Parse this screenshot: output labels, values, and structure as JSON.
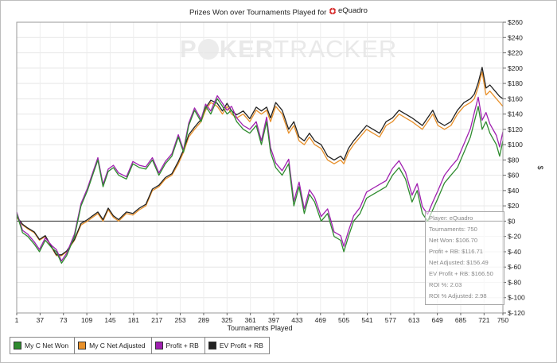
{
  "chart_data": {
    "type": "line",
    "title_prefix": "Prizes Won over Tournaments Played for",
    "player": "eQuadro",
    "watermark": "POKERTRACKER",
    "xlabel": "Tournaments Played",
    "ylabel": "$",
    "xlim": [
      1,
      750
    ],
    "ylim": [
      -120,
      260
    ],
    "x_ticks": [
      "1",
      "37",
      "73",
      "109",
      "145",
      "181",
      "217",
      "253",
      "289",
      "325",
      "361",
      "397",
      "433",
      "469",
      "505",
      "541",
      "577",
      "613",
      "649",
      "685",
      "721",
      "750"
    ],
    "y_ticks": [
      "$260",
      "$240",
      "$220",
      "$200",
      "$180",
      "$160",
      "$140",
      "$120",
      "$100",
      "$80",
      "$60",
      "$40",
      "$20",
      "$0",
      "$-20",
      "$-40",
      "$-60",
      "$-80",
      "$-100",
      "$-120"
    ],
    "grid": true,
    "zero_line": true,
    "legend_position": "bottom-left",
    "series": [
      {
        "name": "My C Net Won",
        "color": "#2e8b2e",
        "x": [
          1,
          10,
          18,
          28,
          36,
          45,
          55,
          62,
          70,
          78,
          90,
          100,
          110,
          118,
          126,
          134,
          142,
          150,
          158,
          170,
          180,
          190,
          200,
          210,
          220,
          230,
          240,
          250,
          258,
          266,
          275,
          285,
          292,
          300,
          310,
          318,
          325,
          332,
          340,
          350,
          360,
          370,
          378,
          386,
          392,
          400,
          410,
          420,
          428,
          436,
          444,
          452,
          460,
          470,
          480,
          490,
          500,
          505,
          512,
          520,
          530,
          540,
          550,
          560,
          570,
          580,
          590,
          600,
          610,
          618,
          626,
          634,
          642,
          650,
          660,
          670,
          680,
          690,
          700,
          706,
          712,
          718,
          724,
          730,
          740,
          745,
          750
        ],
        "values": [
          10,
          -15,
          -20,
          -30,
          -40,
          -25,
          -35,
          -40,
          -55,
          -45,
          -20,
          20,
          40,
          60,
          80,
          45,
          65,
          70,
          60,
          55,
          75,
          70,
          68,
          80,
          60,
          75,
          85,
          110,
          90,
          125,
          145,
          130,
          150,
          140,
          160,
          150,
          140,
          145,
          130,
          120,
          115,
          125,
          100,
          130,
          90,
          70,
          60,
          75,
          20,
          45,
          10,
          35,
          25,
          0,
          10,
          -20,
          -25,
          -40,
          -20,
          0,
          10,
          30,
          35,
          40,
          45,
          60,
          70,
          55,
          25,
          40,
          10,
          0,
          15,
          30,
          50,
          60,
          70,
          90,
          110,
          130,
          150,
          120,
          130,
          115,
          100,
          85,
          105
        ]
      },
      {
        "name": "My C Net Adjusted",
        "color": "#e8902a",
        "x": [
          1,
          10,
          18,
          28,
          36,
          45,
          55,
          62,
          70,
          78,
          90,
          100,
          110,
          118,
          126,
          134,
          142,
          150,
          158,
          170,
          180,
          190,
          200,
          210,
          220,
          230,
          240,
          250,
          258,
          266,
          275,
          285,
          292,
          300,
          310,
          318,
          325,
          332,
          340,
          350,
          360,
          370,
          378,
          386,
          392,
          400,
          410,
          420,
          428,
          436,
          444,
          452,
          460,
          470,
          480,
          490,
          500,
          505,
          512,
          520,
          530,
          540,
          550,
          560,
          570,
          580,
          590,
          600,
          610,
          618,
          626,
          634,
          642,
          650,
          660,
          670,
          680,
          690,
          700,
          706,
          712,
          718,
          724,
          730,
          740,
          745,
          750
        ],
        "values": [
          5,
          -5,
          -10,
          -15,
          -25,
          -20,
          -35,
          -45,
          -45,
          -40,
          -25,
          -5,
          0,
          5,
          10,
          0,
          15,
          5,
          0,
          10,
          8,
          15,
          20,
          40,
          45,
          55,
          60,
          75,
          90,
          110,
          120,
          130,
          145,
          155,
          150,
          140,
          150,
          140,
          135,
          140,
          130,
          145,
          140,
          145,
          130,
          150,
          140,
          115,
          125,
          105,
          100,
          110,
          100,
          95,
          80,
          75,
          80,
          75,
          90,
          100,
          110,
          120,
          115,
          110,
          125,
          130,
          140,
          135,
          130,
          125,
          120,
          130,
          140,
          125,
          120,
          125,
          140,
          150,
          155,
          160,
          175,
          195,
          165,
          170,
          160,
          155,
          150
        ]
      },
      {
        "name": "Profit + RB",
        "color": "#a020b0",
        "x": [
          1,
          10,
          18,
          28,
          36,
          45,
          55,
          62,
          70,
          78,
          90,
          100,
          110,
          118,
          126,
          134,
          142,
          150,
          158,
          170,
          180,
          190,
          200,
          210,
          220,
          230,
          240,
          250,
          258,
          266,
          275,
          285,
          292,
          300,
          310,
          318,
          325,
          332,
          340,
          350,
          360,
          370,
          378,
          386,
          392,
          400,
          410,
          420,
          428,
          436,
          444,
          452,
          460,
          470,
          480,
          490,
          500,
          505,
          512,
          520,
          530,
          540,
          550,
          560,
          570,
          580,
          590,
          600,
          610,
          618,
          626,
          634,
          642,
          650,
          660,
          670,
          680,
          690,
          700,
          706,
          712,
          718,
          724,
          730,
          740,
          745,
          750
        ],
        "values": [
          12,
          -12,
          -17,
          -27,
          -37,
          -22,
          -32,
          -37,
          -52,
          -42,
          -17,
          23,
          43,
          63,
          83,
          48,
          68,
          73,
          63,
          58,
          78,
          73,
          71,
          83,
          63,
          78,
          88,
          113,
          93,
          128,
          148,
          133,
          153,
          144,
          164,
          154,
          145,
          150,
          135,
          125,
          120,
          130,
          105,
          136,
          96,
          76,
          66,
          81,
          26,
          51,
          16,
          41,
          31,
          6,
          16,
          -14,
          -19,
          -33,
          -13,
          7,
          18,
          38,
          43,
          48,
          53,
          69,
          79,
          64,
          34,
          49,
          19,
          9,
          25,
          40,
          60,
          71,
          81,
          101,
          121,
          142,
          162,
          132,
          142,
          127,
          112,
          97,
          117
        ]
      },
      {
        "name": "EV Profit + RB",
        "color": "#222222",
        "x": [
          1,
          10,
          18,
          28,
          36,
          45,
          55,
          62,
          70,
          78,
          90,
          100,
          110,
          118,
          126,
          134,
          142,
          150,
          158,
          170,
          180,
          190,
          200,
          210,
          220,
          230,
          240,
          250,
          258,
          266,
          275,
          285,
          292,
          300,
          310,
          318,
          325,
          332,
          340,
          350,
          360,
          370,
          378,
          386,
          392,
          400,
          410,
          420,
          428,
          436,
          444,
          452,
          460,
          470,
          480,
          490,
          500,
          505,
          512,
          520,
          530,
          540,
          550,
          560,
          570,
          580,
          590,
          600,
          610,
          618,
          626,
          634,
          642,
          650,
          660,
          670,
          680,
          690,
          700,
          706,
          712,
          718,
          724,
          730,
          740,
          745,
          750
        ],
        "values": [
          6,
          -4,
          -9,
          -14,
          -24,
          -19,
          -34,
          -44,
          -44,
          -39,
          -24,
          -3,
          2,
          7,
          12,
          2,
          17,
          7,
          2,
          12,
          10,
          17,
          22,
          42,
          47,
          57,
          62,
          78,
          93,
          113,
          123,
          133,
          148,
          158,
          154,
          144,
          154,
          144,
          139,
          144,
          134,
          149,
          144,
          149,
          135,
          155,
          145,
          120,
          130,
          110,
          105,
          115,
          105,
          100,
          85,
          80,
          85,
          80,
          95,
          105,
          115,
          125,
          120,
          115,
          130,
          135,
          145,
          140,
          135,
          130,
          125,
          135,
          145,
          130,
          125,
          130,
          145,
          155,
          160,
          166,
          181,
          201,
          174,
          178,
          168,
          163,
          160
        ]
      }
    ],
    "info_box": {
      "player": "Player: eQuadro",
      "tournaments": "Tournaments: 750",
      "net_won": "Net Won: $106.70",
      "profit_rb": "Profit + RB: $116.71",
      "net_adjusted": "Net Adjusted: $156.49",
      "ev_profit_rb": "EV Profit + RB: $166.50",
      "roi": "ROI %: 2.03",
      "roi_adjusted": "ROI % Adjusted: 2.98"
    }
  }
}
